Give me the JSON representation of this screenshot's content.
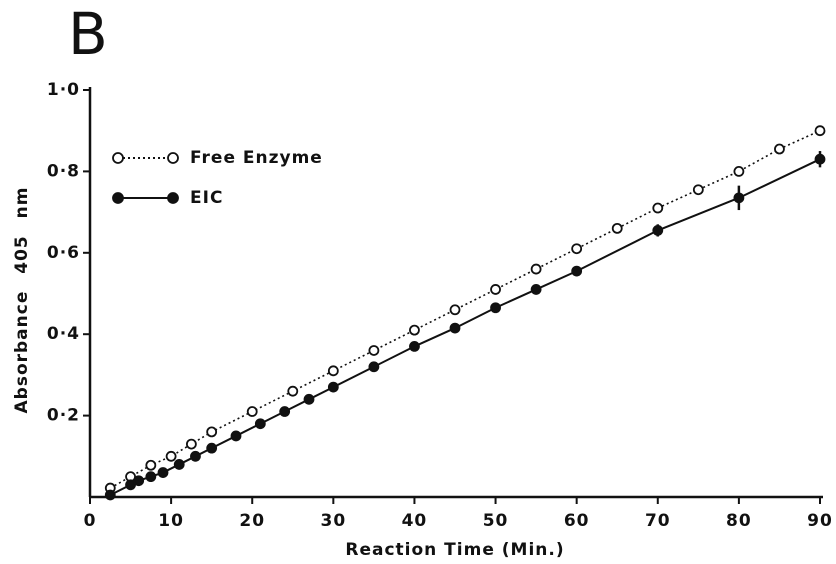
{
  "chart_data": {
    "type": "line",
    "title": "B",
    "x_label": "Reaction Time (Min.)",
    "y_label": "Absorbance 405 nm",
    "xlim": [
      0,
      90
    ],
    "ylim": [
      0,
      1.0
    ],
    "xticks": [
      0,
      10,
      20,
      30,
      40,
      50,
      60,
      70,
      80,
      90
    ],
    "yticks": [
      {
        "value": 0.2,
        "label": "0·2"
      },
      {
        "value": 0.4,
        "label": "0·4"
      },
      {
        "value": 0.6,
        "label": "0·6"
      },
      {
        "value": 0.8,
        "label": "0·8"
      },
      {
        "value": 1.0,
        "label": "1·0"
      }
    ],
    "legend": "upper left",
    "series": [
      {
        "name": "Free Enzyme",
        "color": "#111111",
        "marker": "open",
        "line": "dotted",
        "x": [
          2.5,
          5,
          7.5,
          10,
          12.5,
          15,
          20,
          25,
          30,
          35,
          40,
          45,
          50,
          55,
          60,
          65,
          70,
          75,
          80,
          85,
          90
        ],
        "values": [
          0.022,
          0.05,
          0.078,
          0.1,
          0.13,
          0.16,
          0.21,
          0.26,
          0.31,
          0.36,
          0.41,
          0.46,
          0.51,
          0.56,
          0.61,
          0.66,
          0.71,
          0.755,
          0.8,
          0.855,
          0.9
        ]
      },
      {
        "name": "EIC",
        "color": "#111111",
        "marker": "filled",
        "line": "solid",
        "x": [
          2.5,
          5,
          6,
          7.5,
          9,
          11,
          13,
          15,
          18,
          21,
          24,
          27,
          30,
          35,
          40,
          45,
          50,
          55,
          60,
          70,
          80,
          90
        ],
        "values": [
          0.005,
          0.03,
          0.04,
          0.05,
          0.06,
          0.08,
          0.1,
          0.12,
          0.15,
          0.18,
          0.21,
          0.24,
          0.27,
          0.32,
          0.37,
          0.415,
          0.465,
          0.51,
          0.555,
          0.655,
          0.735,
          0.83
        ],
        "errors": [
          0.01,
          0.01,
          0.01,
          0.01,
          0.01,
          0.01,
          0.01,
          0.01,
          0.01,
          0.01,
          0.01,
          0.01,
          0.01,
          0.01,
          0.01,
          0.01,
          0.012,
          0.012,
          0.012,
          0.015,
          0.03,
          0.02
        ]
      }
    ]
  }
}
